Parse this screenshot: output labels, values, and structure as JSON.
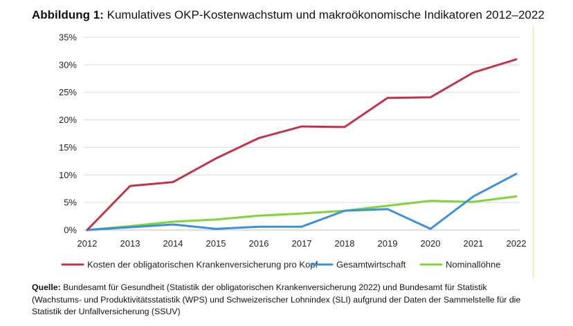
{
  "figure": {
    "label": "Abbildung 1:",
    "title": "Kumulatives OKP-Kostenwachstum und makroökonomische Indikatoren 2012–2022"
  },
  "chart_data": {
    "type": "line",
    "x": [
      "2012",
      "2013",
      "2014",
      "2015",
      "2016",
      "2017",
      "2018",
      "2019",
      "2020",
      "2021",
      "2022"
    ],
    "y_ticks": [
      "0%",
      "5%",
      "10%",
      "15%",
      "20%",
      "25%",
      "30%",
      "35%"
    ],
    "ylim": [
      0,
      35
    ],
    "y_unit": "%",
    "grid": true,
    "legend_position": "bottom",
    "series": [
      {
        "name": "Kosten der obligatorischen Krankenversicherung pro Kopf",
        "color": "#c0344a",
        "values": [
          0,
          8.0,
          8.7,
          13.0,
          16.7,
          18.8,
          18.7,
          24.0,
          24.1,
          28.6,
          31.0
        ]
      },
      {
        "name": "Gesamtwirtschaft",
        "color": "#3d8fdc",
        "values": [
          0,
          0.5,
          1.0,
          0.2,
          0.6,
          0.6,
          3.5,
          3.8,
          0.2,
          6.1,
          10.2
        ]
      },
      {
        "name": "Nominallöhne",
        "color": "#7ed43a",
        "values": [
          0,
          0.7,
          1.5,
          1.9,
          2.6,
          3.0,
          3.5,
          4.4,
          5.3,
          5.1,
          6.1
        ]
      }
    ]
  },
  "caption": {
    "label": "Quelle:",
    "text": "Bundesamt für Gesundheit (Statistik der obligatorischen Krankenversicherung 2022) und Bundesamt für Statistik (Wachstums- und Produktivitätsstatistik (WPS) und Schweizerischer Lohnindex (SLI) aufgrund der Daten der Sammelstelle für die Statistik der Unfallversicherung (SSUV)"
  }
}
